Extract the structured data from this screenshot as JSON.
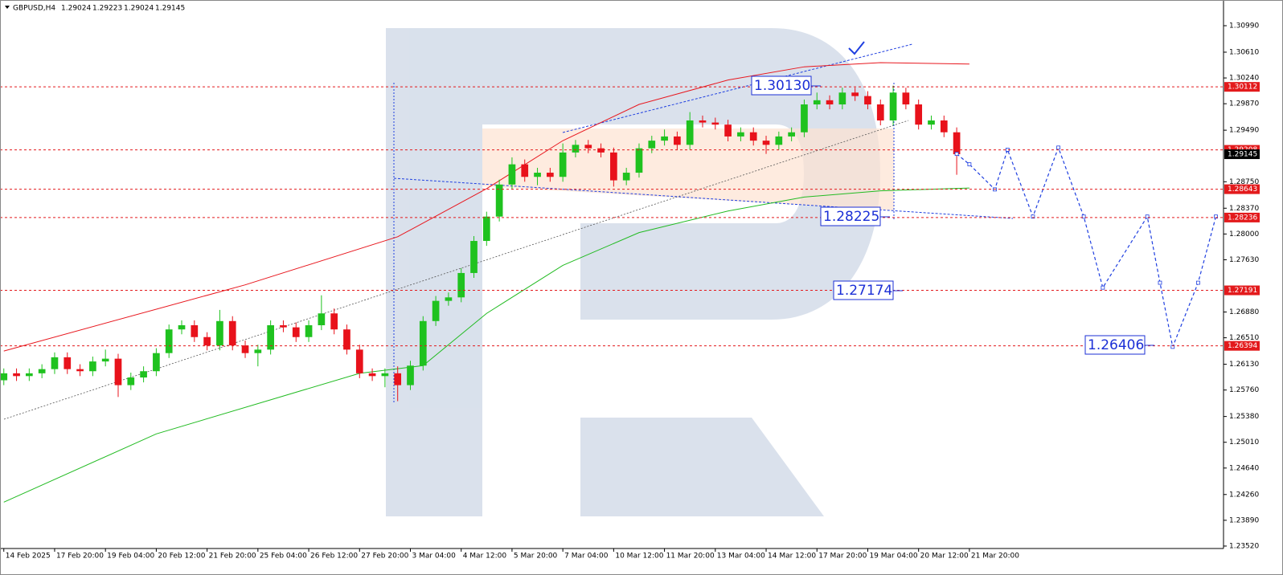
{
  "chart_data": {
    "type": "candlestick",
    "title": "GBPUSD,H4",
    "quote": [
      "1.29024",
      "1.29223",
      "1.29024",
      "1.29145"
    ],
    "up_color": "#1fc21f",
    "down_color": "#e8121b",
    "open": [
      1.259,
      1.26,
      1.2596,
      1.26,
      1.2606,
      1.2623,
      1.2606,
      1.2603,
      1.2617,
      1.2621,
      1.2583,
      1.2594,
      1.2603,
      1.2629,
      1.2663,
      1.2669,
      1.2652,
      1.264,
      1.2675,
      1.264,
      1.2629,
      1.2634,
      1.2669,
      1.2666,
      1.2652,
      1.2669,
      1.2686,
      1.2663,
      1.2634,
      1.26,
      1.2596,
      1.26,
      1.2583,
      1.2611,
      1.2675,
      1.2704,
      1.2709,
      1.2744,
      1.279,
      1.2825,
      1.2871,
      1.29,
      1.2882,
      1.2888,
      1.2882,
      1.2917,
      1.2928,
      1.2923,
      1.2917,
      1.2877,
      1.2888,
      1.2923,
      1.2934,
      1.294,
      1.2928,
      1.2963,
      1.296,
      1.2957,
      1.294,
      1.2946,
      1.2934,
      1.2928,
      1.294,
      1.2946,
      1.2986,
      1.2992,
      1.2986,
      1.3003,
      1.2998,
      1.2986,
      1.2963,
      1.3003,
      1.2986,
      1.2957,
      1.2963,
      1.2946
    ],
    "high": [
      1.2607,
      1.2607,
      1.2607,
      1.2613,
      1.263,
      1.263,
      1.2613,
      1.2624,
      1.2634,
      1.2628,
      1.2601,
      1.261,
      1.2636,
      1.267,
      1.2676,
      1.2676,
      1.2659,
      1.2691,
      1.2682,
      1.2647,
      1.2641,
      1.2676,
      1.2676,
      1.2673,
      1.2676,
      1.2712,
      1.2693,
      1.267,
      1.2641,
      1.2607,
      1.2607,
      1.261,
      1.2618,
      1.2682,
      1.2711,
      1.2716,
      1.2751,
      1.2797,
      1.2832,
      1.2878,
      1.291,
      1.2907,
      1.2895,
      1.2895,
      1.293,
      1.2935,
      1.2935,
      1.293,
      1.2924,
      1.2895,
      1.293,
      1.2941,
      1.295,
      1.2947,
      1.2975,
      1.297,
      1.2967,
      1.2964,
      1.2953,
      1.2953,
      1.2941,
      1.2947,
      1.2953,
      1.2993,
      1.3003,
      1.2999,
      1.301,
      1.301,
      1.3005,
      1.2993,
      1.3013,
      1.301,
      1.2993,
      1.297,
      1.297,
      1.2953
    ],
    "low": [
      1.2583,
      1.2589,
      1.2589,
      1.2593,
      1.2599,
      1.2599,
      1.2596,
      1.2596,
      1.261,
      1.2566,
      1.2576,
      1.2587,
      1.2596,
      1.2622,
      1.2656,
      1.2645,
      1.2633,
      1.2633,
      1.2633,
      1.2622,
      1.261,
      1.2627,
      1.2659,
      1.2645,
      1.2645,
      1.2662,
      1.2656,
      1.2627,
      1.2593,
      1.2589,
      1.258,
      1.256,
      1.2576,
      1.2604,
      1.2668,
      1.2697,
      1.2702,
      1.2737,
      1.2783,
      1.2818,
      1.2864,
      1.2875,
      1.287,
      1.2875,
      1.2875,
      1.291,
      1.2916,
      1.291,
      1.2868,
      1.287,
      1.2881,
      1.2916,
      1.2927,
      1.2921,
      1.2921,
      1.2953,
      1.295,
      1.2933,
      1.2933,
      1.2927,
      1.2915,
      1.2921,
      1.2933,
      1.2939,
      1.2979,
      1.2979,
      1.2979,
      1.2991,
      1.2979,
      1.2956,
      1.2956,
      1.2979,
      1.295,
      1.295,
      1.2939,
      1.2885
    ],
    "close": [
      1.26,
      1.2596,
      1.26,
      1.2606,
      1.2623,
      1.2606,
      1.2603,
      1.2617,
      1.2621,
      1.2583,
      1.2594,
      1.2603,
      1.2629,
      1.2663,
      1.2669,
      1.2652,
      1.264,
      1.2675,
      1.264,
      1.2629,
      1.2634,
      1.2669,
      1.2666,
      1.2652,
      1.2669,
      1.2686,
      1.2663,
      1.2634,
      1.26,
      1.2596,
      1.26,
      1.2583,
      1.2611,
      1.2675,
      1.2704,
      1.2709,
      1.2744,
      1.279,
      1.2825,
      1.2871,
      1.29,
      1.2882,
      1.2888,
      1.2882,
      1.2917,
      1.2928,
      1.2923,
      1.2917,
      1.2877,
      1.2888,
      1.2923,
      1.2934,
      1.294,
      1.2928,
      1.2963,
      1.296,
      1.2957,
      1.294,
      1.2946,
      1.2934,
      1.2928,
      1.294,
      1.2946,
      1.2986,
      1.2992,
      1.2986,
      1.3003,
      1.2998,
      1.2986,
      1.2963,
      1.3003,
      1.2986,
      1.2957,
      1.2963,
      1.2946,
      1.29145
    ],
    "lines": [
      {
        "color": "#e8171e",
        "dashed": false,
        "x": [
          0,
          19,
          31,
          38,
          44,
          50,
          57,
          63,
          69,
          76
        ],
        "values": [
          1.2632,
          1.2727,
          1.2796,
          1.2865,
          1.2934,
          1.2986,
          1.3021,
          1.304,
          1.3046,
          1.3044
        ]
      },
      {
        "color": "#22bb22",
        "dashed": false,
        "x": [
          0,
          12,
          28,
          33,
          38,
          44,
          50,
          57,
          63,
          69,
          76
        ],
        "values": [
          1.2415,
          1.2513,
          1.26,
          1.2611,
          1.2686,
          1.2755,
          1.2802,
          1.2833,
          1.2853,
          1.2862,
          1.2866
        ]
      },
      {
        "color": "#1f3fe0",
        "dashed": true,
        "x": [
          75,
          76,
          78,
          79,
          81,
          83,
          85,
          86.5,
          90,
          91,
          92,
          94,
          95.4
        ],
        "values": [
          1.2915,
          1.29,
          1.2864,
          1.2921,
          1.2825,
          1.2924,
          1.2825,
          1.2723,
          1.2825,
          1.273,
          1.2638,
          1.273,
          1.2825
        ]
      }
    ],
    "levels": [
      {
        "value": 1.30112,
        "color": "#e31a1c"
      },
      {
        "value": 1.29208,
        "color": "#e31a1c"
      },
      {
        "value": 1.28643,
        "color": "#e31a1c"
      },
      {
        "value": 1.28236,
        "color": "#e31a1c"
      },
      {
        "value": 1.27191,
        "color": "#e31a1c"
      },
      {
        "value": 1.26394,
        "color": "#e31a1c"
      }
    ],
    "current": 1.29145,
    "annotations": [
      "1.30130",
      "1.28225",
      "1.27174",
      "1.26406"
    ],
    "xlim": [
      -0.3,
      96
    ],
    "ylim": [
      1.23485,
      1.31336
    ],
    "xticks": [
      {
        "value": 0,
        "label": "14 Feb 2025"
      },
      {
        "value": 4,
        "label": "17 Feb 20:00"
      },
      {
        "value": 8,
        "label": "19 Feb 04:00"
      },
      {
        "value": 12,
        "label": "20 Feb 12:00"
      },
      {
        "value": 16,
        "label": "21 Feb 20:00"
      },
      {
        "value": 20,
        "label": "25 Feb 04:00"
      },
      {
        "value": 24,
        "label": "26 Feb 12:00"
      },
      {
        "value": 28,
        "label": "27 Feb 20:00"
      },
      {
        "value": 32,
        "label": "3 Mar 04:00"
      },
      {
        "value": 36,
        "label": "4 Mar 12:00"
      },
      {
        "value": 40,
        "label": "5 Mar 20:00"
      },
      {
        "value": 44,
        "label": "7 Mar 04:00"
      },
      {
        "value": 48,
        "label": "10 Mar 12:00"
      },
      {
        "value": 52,
        "label": "11 Mar 20:00"
      },
      {
        "value": 56,
        "label": "13 Mar 04:00"
      },
      {
        "value": 60,
        "label": "14 Mar 12:00"
      },
      {
        "value": 64,
        "label": "17 Mar 20:00"
      },
      {
        "value": 68,
        "label": "19 Mar 04:00"
      },
      {
        "value": 72,
        "label": "20 Mar 12:00"
      },
      {
        "value": 76,
        "label": "21 Mar 20:00"
      }
    ],
    "yticks": [
      {
        "value": 1.3099,
        "label": "1.30990"
      },
      {
        "value": 1.3061,
        "label": "1.30610"
      },
      {
        "value": 1.3024,
        "label": "1.30240"
      },
      {
        "value": 1.2987,
        "label": "1.29870"
      },
      {
        "value": 1.2949,
        "label": "1.29490"
      },
      {
        "value": 1.2875,
        "label": "1.28750"
      },
      {
        "value": 1.2837,
        "label": "1.28370"
      },
      {
        "value": 1.28,
        "label": "1.28000"
      },
      {
        "value": 1.2763,
        "label": "1.27630"
      },
      {
        "value": 1.2688,
        "label": "1.26880"
      },
      {
        "value": 1.2651,
        "label": "1.26510"
      },
      {
        "value": 1.2613,
        "label": "1.26130"
      },
      {
        "value": 1.2576,
        "label": "1.25760"
      },
      {
        "value": 1.2538,
        "label": "1.25380"
      },
      {
        "value": 1.2501,
        "label": "1.25010"
      },
      {
        "value": 1.2464,
        "label": "1.24640"
      },
      {
        "value": 1.2426,
        "label": "1.24260"
      },
      {
        "value": 1.2389,
        "label": "1.23890"
      },
      {
        "value": 1.2352,
        "label": "1.23520"
      }
    ]
  }
}
